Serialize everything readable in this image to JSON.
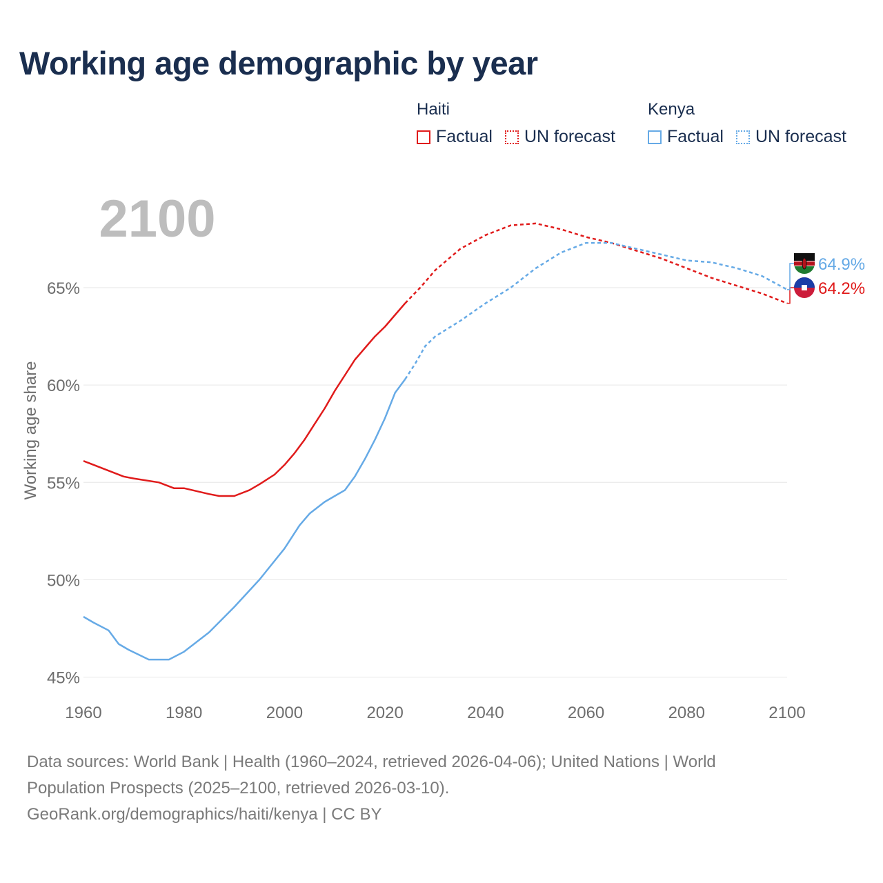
{
  "title": "Working age demographic by year",
  "legend": {
    "groups": [
      {
        "name": "Haiti",
        "items": [
          {
            "label": "Factual",
            "style": "solid",
            "color": "#e01b1b"
          },
          {
            "label": "UN forecast",
            "style": "dotted",
            "color": "#e01b1b"
          }
        ]
      },
      {
        "name": "Kenya",
        "items": [
          {
            "label": "Factual",
            "style": "solid",
            "color": "#66aae6"
          },
          {
            "label": "UN forecast",
            "style": "dotted",
            "color": "#66aae6"
          }
        ]
      }
    ]
  },
  "chart_data": {
    "type": "line",
    "year_watermark": "2100",
    "xlabel": "",
    "ylabel": "Working age share",
    "x_ticks": [
      1960,
      1980,
      2000,
      2020,
      2040,
      2060,
      2080,
      2100
    ],
    "y_ticks": [
      45,
      50,
      55,
      60,
      65
    ],
    "y_tick_labels": [
      "45%",
      "50%",
      "55%",
      "60%",
      "65%"
    ],
    "xlim": [
      1960,
      2100
    ],
    "ylim": [
      44.7,
      69.5
    ],
    "grid": true,
    "forecast_start": 2024,
    "series": [
      {
        "name": "Haiti",
        "color": "#e01b1b",
        "end_label": "64.2%",
        "points": [
          [
            1960,
            56.1
          ],
          [
            1965,
            55.6
          ],
          [
            1968,
            55.3
          ],
          [
            1970,
            55.2
          ],
          [
            1975,
            55.0
          ],
          [
            1978,
            54.7
          ],
          [
            1980,
            54.7
          ],
          [
            1985,
            54.4
          ],
          [
            1987,
            54.3
          ],
          [
            1990,
            54.3
          ],
          [
            1993,
            54.6
          ],
          [
            1995,
            54.9
          ],
          [
            1998,
            55.4
          ],
          [
            2000,
            55.9
          ],
          [
            2002,
            56.5
          ],
          [
            2004,
            57.2
          ],
          [
            2006,
            58.0
          ],
          [
            2008,
            58.8
          ],
          [
            2010,
            59.7
          ],
          [
            2012,
            60.5
          ],
          [
            2014,
            61.3
          ],
          [
            2016,
            61.9
          ],
          [
            2018,
            62.5
          ],
          [
            2020,
            63.0
          ],
          [
            2022,
            63.6
          ],
          [
            2024,
            64.2
          ],
          [
            2027,
            65.0
          ],
          [
            2030,
            65.9
          ],
          [
            2035,
            67.0
          ],
          [
            2040,
            67.7
          ],
          [
            2045,
            68.2
          ],
          [
            2050,
            68.3
          ],
          [
            2055,
            68.0
          ],
          [
            2060,
            67.6
          ],
          [
            2065,
            67.3
          ],
          [
            2070,
            66.9
          ],
          [
            2075,
            66.5
          ],
          [
            2080,
            66.0
          ],
          [
            2085,
            65.5
          ],
          [
            2090,
            65.1
          ],
          [
            2095,
            64.7
          ],
          [
            2100,
            64.2
          ]
        ]
      },
      {
        "name": "Kenya",
        "color": "#66aae6",
        "end_label": "64.9%",
        "points": [
          [
            1960,
            48.1
          ],
          [
            1962,
            47.8
          ],
          [
            1965,
            47.4
          ],
          [
            1967,
            46.7
          ],
          [
            1969,
            46.4
          ],
          [
            1973,
            45.9
          ],
          [
            1977,
            45.9
          ],
          [
            1980,
            46.3
          ],
          [
            1985,
            47.3
          ],
          [
            1990,
            48.6
          ],
          [
            1995,
            50.0
          ],
          [
            2000,
            51.6
          ],
          [
            2003,
            52.8
          ],
          [
            2005,
            53.4
          ],
          [
            2008,
            54.0
          ],
          [
            2010,
            54.3
          ],
          [
            2012,
            54.6
          ],
          [
            2014,
            55.3
          ],
          [
            2016,
            56.2
          ],
          [
            2018,
            57.2
          ],
          [
            2020,
            58.3
          ],
          [
            2022,
            59.6
          ],
          [
            2024,
            60.3
          ],
          [
            2026,
            61.1
          ],
          [
            2028,
            62.0
          ],
          [
            2030,
            62.5
          ],
          [
            2035,
            63.3
          ],
          [
            2040,
            64.2
          ],
          [
            2045,
            65.0
          ],
          [
            2050,
            66.0
          ],
          [
            2055,
            66.8
          ],
          [
            2060,
            67.3
          ],
          [
            2065,
            67.3
          ],
          [
            2070,
            67.0
          ],
          [
            2075,
            66.7
          ],
          [
            2080,
            66.4
          ],
          [
            2085,
            66.3
          ],
          [
            2090,
            66.0
          ],
          [
            2095,
            65.6
          ],
          [
            2100,
            64.9
          ]
        ]
      }
    ]
  },
  "sources": {
    "line1": "Data sources: World Bank | Health (1960–2024, retrieved 2026-04-06); United Nations | World",
    "line2": "Population Prospects (2025–2100, retrieved 2026-03-10).",
    "line3": "GeoRank.org/demographics/haiti/kenya | CC BY"
  }
}
